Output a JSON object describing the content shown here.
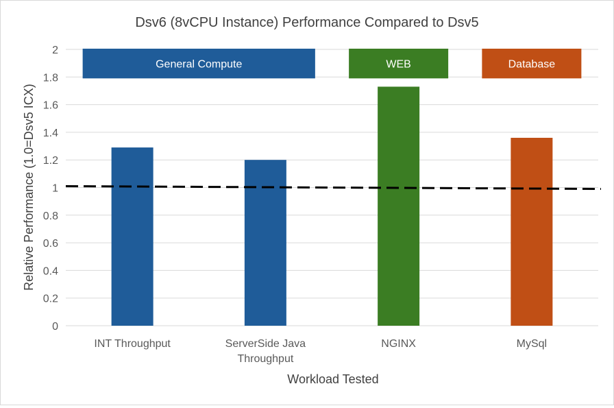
{
  "chart_data": {
    "type": "bar",
    "title": "Dsv6 (8vCPU Instance) Performance Compared to Dsv5",
    "xlabel": "Workload Tested",
    "ylabel": "Relative Performance (1.0=Dsv5 ICX)",
    "ylim": [
      0,
      2
    ],
    "yticks": [
      "0",
      "0.2",
      "0.4",
      "0.6",
      "0.8",
      "1",
      "1.2",
      "1.4",
      "1.6",
      "1.8",
      "2"
    ],
    "categories": [
      [
        "INT Throughput"
      ],
      [
        "ServerSide Java",
        "Throughput"
      ],
      [
        "NGINX"
      ],
      [
        "MySql"
      ]
    ],
    "values": [
      1.29,
      1.2,
      1.73,
      1.36
    ],
    "bar_colors": [
      "#1f5c99",
      "#1f5c99",
      "#3b7d23",
      "#c04f15"
    ],
    "grid": true,
    "baseline": {
      "value": 1.0,
      "style": "dashed"
    },
    "groups": [
      {
        "label": "General Compute",
        "color": "#1f5c99",
        "categories": [
          0,
          1
        ]
      },
      {
        "label": "WEB",
        "color": "#3b7d23",
        "categories": [
          2
        ]
      },
      {
        "label": "Database",
        "color": "#c04f15",
        "categories": [
          3
        ]
      }
    ]
  }
}
